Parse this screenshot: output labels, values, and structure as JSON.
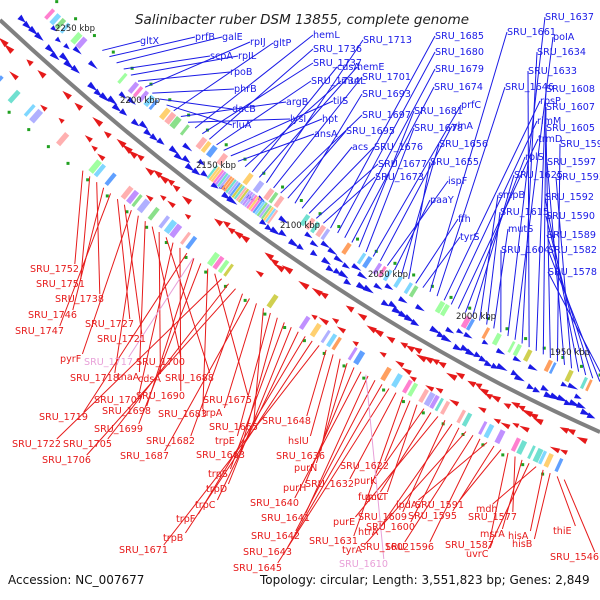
{
  "title": "Salinibacter ruber DSM 13855, complete genome",
  "footer": {
    "accession": "Accession: NC_007677",
    "summary": "Topology: circular; Length: 3,551,823 bp; Genes: 2,849"
  },
  "colors": {
    "forward": "#1a1ae6",
    "reverse": "#e61a1a",
    "pseudo_reverse": "#e8a0d8",
    "backbone": "#808080"
  },
  "kbp_labels": [
    "2250 kbp",
    "2200 kbp",
    "2150 kbp",
    "2100 kbp",
    "2050 kbp",
    "2000 kbp",
    "1950 kbp"
  ],
  "forward_genes": [
    "gltX",
    "prfB",
    "galE",
    "scpA",
    "rpIL",
    "rpoB",
    "rpIJ",
    "phrB",
    "dacB",
    "rluA",
    "gltP",
    "argB",
    "lysI",
    "hemL",
    "SRU_1737",
    "SRU_1736",
    "SRU_1734",
    "tilS",
    "hpt",
    "ansA",
    "mutL",
    "cdsA",
    "hemE",
    "SRU_1713",
    "SRU_1701",
    "SRU_1697",
    "SRU_1695",
    "SRU_1693",
    "acs",
    "SRU_1676",
    "SRU_1677",
    "SRU_1673",
    "SRU_1685",
    "SRU_1680",
    "SRU_1679",
    "SRU_1674",
    "SRU_1681",
    "SRU_1678",
    "prfC",
    "ylnA",
    "ispF",
    "paaY",
    "SRU_1656",
    "SRU_1655",
    "ffh",
    "tyrS",
    "SRU_1661",
    "SRU_1646",
    "rpsP",
    "rimM",
    "trmD",
    "rplS",
    "SRU_1625",
    "smpB",
    "SRU_1615",
    "mutS",
    "SRU_1604",
    "SRU_1637",
    "poIA",
    "SRU_1634",
    "SRU_1633",
    "SRU_1608",
    "SRU_1607",
    "SRU_1605",
    "SRU_1599",
    "SRU_1597",
    "SRU_1593",
    "SRU_1592",
    "SRU_1590",
    "SRU_1589",
    "SRU_1582",
    "SRU_1578"
  ],
  "reverse_genes": [
    "SRU_1752",
    "SRU_1751",
    "SRU_1738",
    "SRU_1746",
    "SRU_1747",
    "SRU_1727",
    "SRU_1721",
    "pyrF",
    "SRU_1718",
    "tnaA",
    "SRU_1700",
    "cdsA",
    "SRU_1688",
    "SRU_1707",
    "SRU_1690",
    "SRU_1719",
    "SRU_1698",
    "SRU_1699",
    "SRU_1683",
    "SRU_1675",
    "SRU_1722",
    "SRU_1705",
    "SRU_1706",
    "SRU_1682",
    "SRU_1687",
    "trpA",
    "SRU_1665",
    "trpE",
    "SRU_1663",
    "trpS",
    "trpD",
    "trpC",
    "trpF",
    "trpB",
    "SRU_1671",
    "SRU_1648",
    "hslU",
    "SRU_1636",
    "purN",
    "purH",
    "SRU_1640",
    "SRU_1641",
    "SRU_1642",
    "SRU_1643",
    "SRU_1645",
    "SRU_1632",
    "SRU_1631",
    "SRU_1622",
    "gcvT",
    "purK",
    "fumC",
    "purE",
    "SRU_1609",
    "htrA",
    "SRU_1600",
    "tyrA",
    "SRU_1602",
    "SRU_1596",
    "lpdA",
    "SRU_1595",
    "SRU_1591",
    "SRU_1587",
    "SRU_1577",
    "msrA",
    "uvrC",
    "mdh",
    "hisA",
    "hisB",
    "thiE",
    "SRU_1546"
  ],
  "pseudo_genes": [
    "SRU_1717",
    "SRU_1610"
  ]
}
